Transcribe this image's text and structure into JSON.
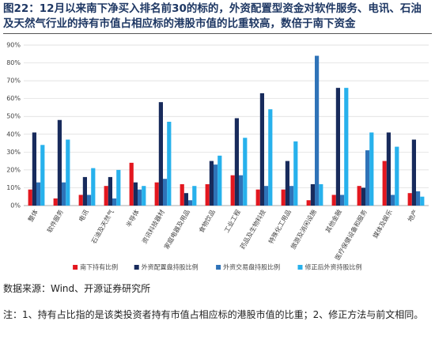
{
  "chart_data": {
    "type": "bar",
    "title": "图22：12月以来南下净买入排名前30的标的，外资配置型资金对软件服务、电讯、石油及天然气行业的持有市值占相应标的港股市值的比重较高，数倍于南下资金",
    "categories": [
      "整体",
      "软件服务",
      "电讯",
      "石油及天然气",
      "半导体",
      "资讯科技器材",
      "家庭电器及用品",
      "食物饮品",
      "工业工程",
      "药品及生物科技",
      "特殊化工用品",
      "旅游及消闲设施",
      "其他金融",
      "医疗保健设备和服务",
      "媒体及娱乐",
      "地产"
    ],
    "series": [
      {
        "name": "南下持有比例",
        "color": "#e3171f",
        "values": [
          9,
          4,
          6,
          11,
          24,
          13,
          12,
          12,
          17,
          9,
          9,
          3,
          6,
          11,
          25,
          7
        ]
      },
      {
        "name": "外资配置盘持股比例",
        "color": "#182b5c",
        "values": [
          41,
          48,
          16,
          16,
          13,
          58,
          7,
          25,
          49,
          63,
          25,
          12,
          66,
          10,
          41,
          37
        ]
      },
      {
        "name": "外资交易盘持股比例",
        "color": "#2f73b8",
        "values": [
          13,
          13,
          6,
          4,
          9,
          15,
          3,
          23,
          17,
          11,
          11,
          84,
          6,
          31,
          6,
          8
        ]
      },
      {
        "name": "修正后外资持股比例",
        "color": "#27b1ec",
        "values": [
          34,
          37,
          21,
          20,
          11,
          47,
          11,
          28,
          38,
          54,
          36,
          12,
          66,
          41,
          33,
          5
        ]
      }
    ],
    "ylim": [
      0,
      90
    ],
    "yticks": [
      {
        "value": 0,
        "label": "0%"
      },
      {
        "value": 10,
        "label": "10%"
      },
      {
        "value": 20,
        "label": "20%"
      },
      {
        "value": 30,
        "label": "30%"
      },
      {
        "value": 40,
        "label": "40%"
      },
      {
        "value": 50,
        "label": "50%"
      },
      {
        "value": 60,
        "label": "60%"
      },
      {
        "value": 70,
        "label": "70%"
      },
      {
        "value": 80,
        "label": "80%"
      },
      {
        "value": 90,
        "label": "90%"
      }
    ],
    "grid": true,
    "legend": "bottom",
    "source": "数据来源：Wind、开源证券研究所",
    "note": "注：1、持有占比指的是该类投资者持有市值占相应标的港股市值的比重；2、修正方法与前文相同。"
  }
}
